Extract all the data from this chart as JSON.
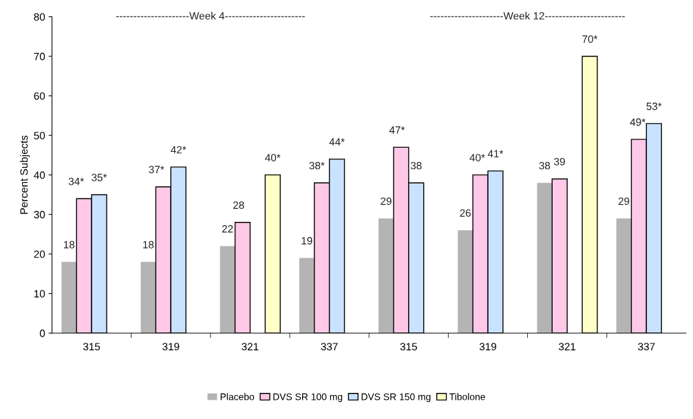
{
  "chart_data": {
    "type": "bar",
    "ylabel": "Percent Subjects",
    "categories": [
      "315",
      "319",
      "321",
      "337",
      "315",
      "319",
      "321",
      "337"
    ],
    "series": [
      {
        "name": "Placebo",
        "color": "#b4b4b4",
        "values": [
          18,
          18,
          22,
          19,
          29,
          26,
          38,
          29
        ],
        "value_labels": [
          "18",
          "18",
          "22",
          "19",
          "29",
          "26",
          "38",
          "29"
        ]
      },
      {
        "name": "DVS SR 100 mg",
        "color": "#ffc8e6",
        "values": [
          34,
          37,
          28,
          38,
          47,
          40,
          39,
          49
        ],
        "value_labels": [
          "34*",
          "37*",
          "28",
          "38*",
          "47*",
          "40*",
          "39",
          "49*"
        ]
      },
      {
        "name": "DVS SR 150 mg",
        "color": "#c8e2ff",
        "values": [
          35,
          42,
          null,
          44,
          38,
          41,
          null,
          53
        ],
        "value_labels": [
          "35*",
          "42*",
          null,
          "44*",
          "38",
          "41*",
          null,
          "53*"
        ]
      },
      {
        "name": "Tibolone",
        "color": "#ffffc8",
        "values": [
          null,
          null,
          40,
          null,
          null,
          null,
          70,
          null
        ],
        "value_labels": [
          null,
          null,
          "40*",
          null,
          null,
          null,
          "70*",
          null
        ]
      }
    ],
    "annotations": [
      "---------------------Week 4-----------------------",
      "---------------------Week 12-----------------------"
    ],
    "ylim": [
      0,
      80
    ],
    "yticks": [
      0,
      10,
      20,
      30,
      40,
      50,
      60,
      70,
      80
    ],
    "grid": false,
    "legend": "bottom"
  }
}
